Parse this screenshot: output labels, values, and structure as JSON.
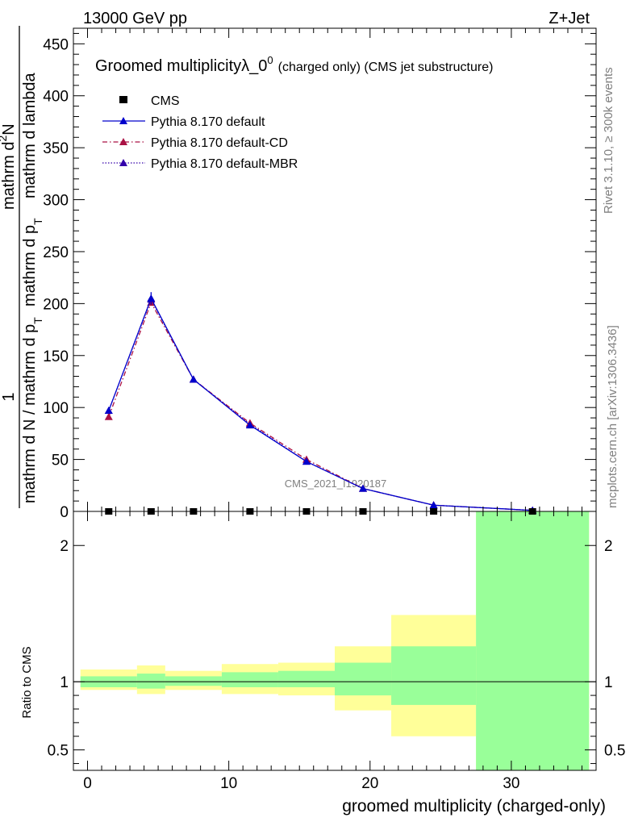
{
  "header": {
    "energy_label": "13000 GeV pp",
    "process_label": "Z+Jet"
  },
  "side": {
    "rivet_label": "Rivet 3.1.10, ≥ 300k events",
    "mcplots_label": "mcplots.cern.ch [arXiv:1306.3436]"
  },
  "chart_data": [
    {
      "type": "line",
      "title_main": "Groomed multiplicityλ_0",
      "title_sup": "0",
      "title_note": "(charged only) (CMS jet substructure)",
      "watermark": "CMS_2021_I1920187",
      "ylabel_parts": [
        "1",
        "mathrm d N / mathrm d p",
        "T",
        "mathrm d p",
        "T",
        "mathrm d lambda",
        "mathrm d",
        "2",
        "N"
      ],
      "xlim": [
        -1,
        36
      ],
      "ylim": [
        0,
        465
      ],
      "yticks": [
        0,
        50,
        100,
        150,
        200,
        250,
        300,
        350,
        400,
        450
      ],
      "ytick_labels": [
        "0",
        "50",
        "100",
        "150",
        "200",
        "250",
        "300",
        "350",
        "400",
        "450"
      ],
      "legend_position": "top-left",
      "series": [
        {
          "name": "CMS",
          "color": "#000000",
          "marker": "square",
          "x": [
            1.5,
            4.5,
            7.5,
            11.5,
            15.5,
            19.5,
            24.5,
            31.5
          ],
          "y": [
            0,
            0,
            0,
            0,
            0,
            0,
            0,
            0
          ]
        },
        {
          "name": "Pythia 8.170 default",
          "color": "#0000cc",
          "line": "solid",
          "marker": "triangle",
          "x": [
            1.5,
            4.5,
            7.5,
            11.5,
            15.5,
            19.5,
            24.5,
            31.5
          ],
          "y": [
            97,
            205,
            127,
            83,
            48,
            22,
            6,
            1
          ],
          "yerr": [
            3,
            6,
            3,
            2,
            2,
            1,
            0.5,
            0.3
          ]
        },
        {
          "name": "Pythia 8.170 default-CD",
          "color": "#aa1144",
          "line": "dashdot",
          "marker": "triangle",
          "x": [
            1.5,
            4.5,
            7.5,
            11.5,
            15.5,
            19.5,
            24.5,
            31.5
          ],
          "y": [
            91,
            201,
            127,
            85,
            50,
            22,
            6,
            1
          ]
        },
        {
          "name": "Pythia 8.170 default-MBR",
          "color": "#3300aa",
          "line": "dotted",
          "marker": "triangle",
          "x": [
            1.5,
            4.5,
            7.5,
            11.5,
            15.5,
            19.5,
            24.5,
            31.5
          ],
          "y": [
            97,
            204,
            127,
            84,
            48,
            22,
            6,
            1
          ]
        }
      ]
    },
    {
      "type": "area",
      "ylabel": "Ratio to CMS",
      "xlabel": "groomed multiplicity (charged-only)",
      "xlim": [
        -1,
        36
      ],
      "ylim": [
        0.35,
        2.25
      ],
      "xticks": [
        0,
        10,
        20,
        30
      ],
      "xtick_labels": [
        "0",
        "10",
        "20",
        "30"
      ],
      "yticks": [
        0.5,
        1,
        2
      ],
      "ytick_labels": [
        "0.5",
        "1",
        "2"
      ],
      "reference_line": 1,
      "bands": [
        {
          "name": "inner",
          "color": "#99ff99",
          "bins": [
            [
              -0.5,
              3.5,
              0.96,
              1.04
            ],
            [
              3.5,
              5.5,
              0.95,
              1.06
            ],
            [
              5.5,
              9.5,
              0.97,
              1.04
            ],
            [
              9.5,
              13.5,
              0.96,
              1.07
            ],
            [
              13.5,
              17.5,
              0.96,
              1.08
            ],
            [
              17.5,
              21.5,
              0.9,
              1.14
            ],
            [
              21.5,
              27.5,
              0.83,
              1.26
            ],
            [
              27.5,
              35.5,
              0.35,
              2.25
            ]
          ]
        },
        {
          "name": "outer",
          "color": "#ffff99",
          "bins": [
            [
              -0.5,
              3.5,
              0.94,
              1.09
            ],
            [
              3.5,
              5.5,
              0.91,
              1.12
            ],
            [
              5.5,
              9.5,
              0.94,
              1.08
            ],
            [
              9.5,
              13.5,
              0.91,
              1.13
            ],
            [
              13.5,
              17.5,
              0.9,
              1.14
            ],
            [
              17.5,
              21.5,
              0.79,
              1.26
            ],
            [
              21.5,
              27.5,
              0.6,
              1.49
            ],
            [
              27.5,
              35.5,
              0.35,
              2.25
            ]
          ]
        }
      ]
    }
  ]
}
